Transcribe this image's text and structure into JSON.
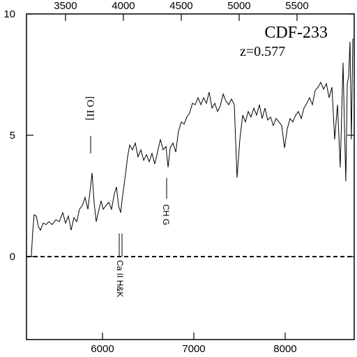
{
  "chart_data": {
    "type": "line",
    "title": "CDF-233",
    "subtitle": "z=0.577",
    "annotations": [
      {
        "text": "[O II]"
      },
      {
        "text": "CH G"
      },
      {
        "text": "Ca II H&K"
      }
    ],
    "x": [
      5221,
      5237,
      5252,
      5275,
      5298,
      5321,
      5351,
      5382,
      5412,
      5450,
      5489,
      5527,
      5565,
      5596,
      5626,
      5657,
      5687,
      5718,
      5748,
      5779,
      5809,
      5840,
      5863,
      5886,
      5908,
      5931,
      5962,
      5985,
      6008,
      6038,
      6069,
      6099,
      6130,
      6153,
      6176,
      6199,
      6221,
      6252,
      6275,
      6298,
      6328,
      6359,
      6389,
      6420,
      6451,
      6481,
      6512,
      6542,
      6573,
      6603,
      6634,
      6664,
      6695,
      6718,
      6741,
      6771,
      6802,
      6832,
      6863,
      6893,
      6924,
      6954,
      6985,
      7015,
      7046,
      7077,
      7107,
      7138,
      7168,
      7199,
      7229,
      7260,
      7290,
      7321,
      7351,
      7382,
      7412,
      7443,
      7473,
      7504,
      7535,
      7565,
      7596,
      7626,
      7657,
      7687,
      7718,
      7748,
      7779,
      7809,
      7840,
      7870,
      7901,
      7932,
      7962,
      7993,
      8023,
      8054,
      8084,
      8115,
      8145,
      8176,
      8206,
      8237,
      8267,
      8298,
      8328,
      8359,
      8390,
      8420,
      8451,
      8481,
      8512,
      8542,
      8573,
      8603,
      8634,
      8649,
      8664,
      8680,
      8695,
      8710,
      8725,
      8741
    ],
    "series": [
      {
        "color": "#000000",
        "values": [
          0,
          1.09,
          1.72,
          1.67,
          1.24,
          1.09,
          1.38,
          1.32,
          1.44,
          1.32,
          1.52,
          1.44,
          1.81,
          1.38,
          1.67,
          1.09,
          1.61,
          1.44,
          1.95,
          2.1,
          2.44,
          1.95,
          2.67,
          3.45,
          2.24,
          1.44,
          1.95,
          2.3,
          1.95,
          2.1,
          2.24,
          1.95,
          2.59,
          2.87,
          2.1,
          1.81,
          2.53,
          3.39,
          4.11,
          4.6,
          4.4,
          4.68,
          4.11,
          4.4,
          3.97,
          4.2,
          3.91,
          4.25,
          3.82,
          4.31,
          4.83,
          4.4,
          4.54,
          3.68,
          4.48,
          4.68,
          4.31,
          5.17,
          5.55,
          5.46,
          5.75,
          5.92,
          6.32,
          6.26,
          6.55,
          6.26,
          6.55,
          6.32,
          6.78,
          6.12,
          6.32,
          5.98,
          6.21,
          6.7,
          6.41,
          6.26,
          6.49,
          6.26,
          3.25,
          4.83,
          5.83,
          5.55,
          5.98,
          5.75,
          6.12,
          5.83,
          6.26,
          5.69,
          6.12,
          5.63,
          5.75,
          5.4,
          5.69,
          5.55,
          5.4,
          4.48,
          5.26,
          5.69,
          5.55,
          5.83,
          5.98,
          5.69,
          6.12,
          6.32,
          6.55,
          6.26,
          6.84,
          6.98,
          7.18,
          6.9,
          7.13,
          6.55,
          6.98,
          4.83,
          6.26,
          3.68,
          7.99,
          5.4,
          3.1,
          7.13,
          7.41,
          8.85,
          4.83,
          8.99
        ]
      }
    ],
    "xlim": [
      5168,
      8756
    ],
    "xticks": [
      6000,
      7000,
      8000
    ],
    "x2lim": [
      3163,
      5994
    ],
    "x2ticks": [
      3500,
      4000,
      4500,
      5000,
      5500
    ],
    "ylim": [
      -3.42,
      10
    ],
    "yticks": [
      0,
      5,
      10
    ],
    "reference_line": 0
  }
}
